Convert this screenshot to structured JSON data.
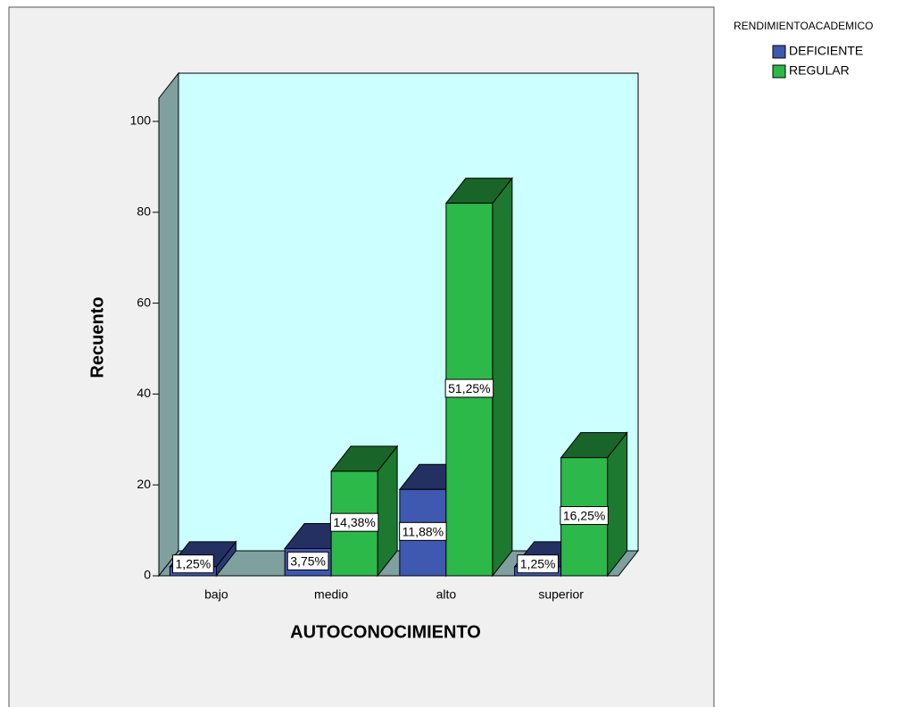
{
  "chart_data": {
    "type": "bar3d",
    "x_label": "AUTOCONOCIMIENTO",
    "y_label": "Recuento",
    "legend_title": "RENDIMIENTOACADEMICO",
    "categories": [
      "bajo",
      "medio",
      "alto",
      "superior"
    ],
    "series": [
      {
        "name": "DEFICIENTE",
        "color": "#3f58b0",
        "values": [
          2,
          6,
          19,
          2
        ],
        "percent_values": [
          1.25,
          3.75,
          11.88,
          1.25
        ],
        "percent_labels": [
          "1,25%",
          "3,75%",
          "11,88%",
          "1,25%"
        ]
      },
      {
        "name": "REGULAR",
        "color": "#2db84a",
        "values": [
          null,
          23,
          82,
          26
        ],
        "percent_values": [
          null,
          14.38,
          51.25,
          16.25
        ],
        "percent_labels": [
          null,
          "14,38%",
          "51,25%",
          "16,25%"
        ]
      }
    ],
    "ylim": [
      0,
      100
    ],
    "yticks": [
      0,
      20,
      40,
      60,
      80,
      100
    ]
  }
}
